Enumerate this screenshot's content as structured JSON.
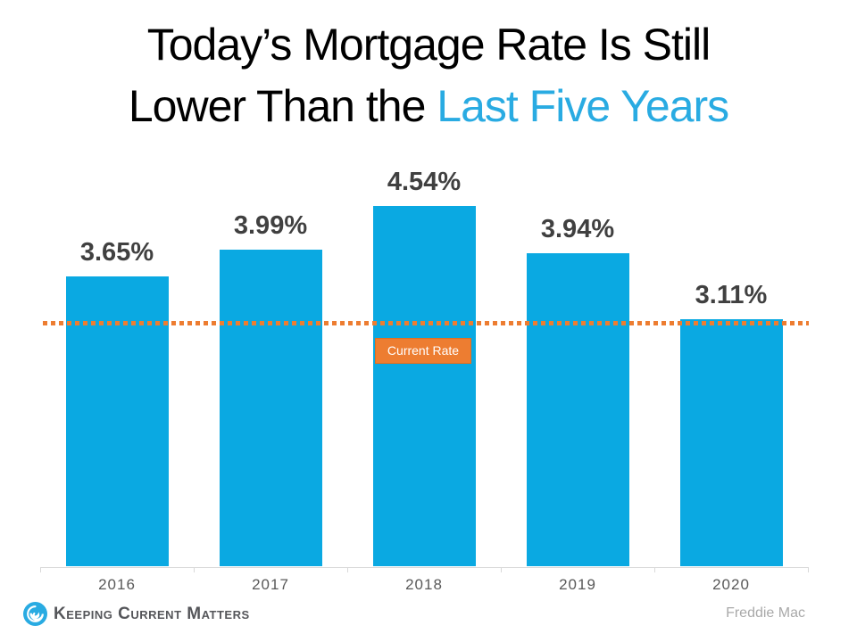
{
  "title": {
    "line1": "Today’s Mortgage Rate Is Still",
    "line2_prefix": "Lower Than the ",
    "line2_highlight": "Last Five Years"
  },
  "chart_data": {
    "type": "bar",
    "categories": [
      "2016",
      "2017",
      "2018",
      "2019",
      "2020"
    ],
    "values": [
      3.65,
      3.99,
      4.54,
      3.94,
      3.11
    ],
    "labels": [
      "3.65%",
      "3.99%",
      "4.54%",
      "3.94%",
      "3.11%"
    ],
    "title": "",
    "xlabel": "",
    "ylabel": "",
    "ylim": [
      0,
      5
    ],
    "grid": false,
    "legend": false,
    "y_axis_visible": false,
    "reference_line": {
      "value": 3.11,
      "label": "Current Rate",
      "style": "dotted",
      "color": "#ED7D31"
    }
  },
  "footer": {
    "brand": "Keeping Current Matters",
    "source": "Freddie Mac"
  },
  "colors": {
    "accent_blue": "#29ABE2",
    "bar_blue": "#0AA9E2",
    "accent_orange": "#ED7D31",
    "label_gray": "#404040",
    "year_gray": "#595959",
    "axis_gray": "#D9D9D9",
    "brand_gray": "#55565A",
    "source_gray": "#A9A9A9"
  }
}
